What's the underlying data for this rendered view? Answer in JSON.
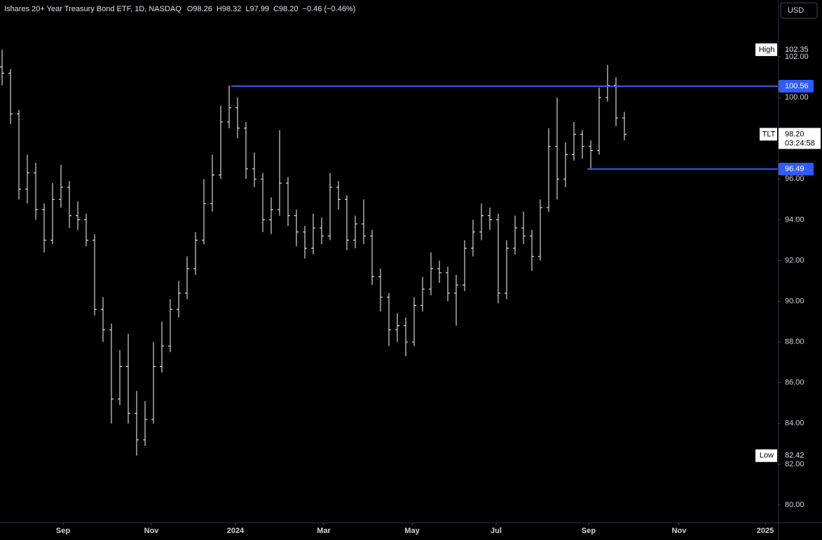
{
  "header": {
    "title": "Ishares 20+ Year Treasury Bond ETF, 1D, NASDAQ",
    "open": "O98.26",
    "high": "H98.32",
    "low": "L97.99",
    "close": "C98.20",
    "change": "−0.46 (−0.46%)"
  },
  "currency": "USD",
  "chart_data": {
    "type": "ohlc",
    "color": "#ffffff",
    "x": [
      1,
      5,
      9,
      13,
      17,
      21,
      25,
      29,
      33,
      37,
      41,
      45,
      49,
      53,
      57,
      61,
      65,
      69,
      73,
      77,
      81,
      85,
      89,
      93,
      97,
      101,
      105,
      109,
      113,
      117,
      121,
      125,
      129,
      133,
      137,
      141,
      145,
      149,
      153,
      157,
      161,
      165,
      169,
      173,
      177,
      181,
      185,
      189,
      193,
      197,
      201,
      205,
      209,
      213,
      217,
      221,
      225,
      229,
      233,
      237,
      241,
      245,
      249,
      253,
      257,
      261,
      265,
      269,
      273,
      277,
      281,
      285,
      289,
      293,
      297
    ],
    "open": [
      101.5,
      101.2,
      99.2,
      95.5,
      96.3,
      94.5,
      93.0,
      95.0,
      95.6,
      94.2,
      94.0,
      93.0,
      89.6,
      88.6,
      85.2,
      86.8,
      84.5,
      83.2,
      84.2,
      86.8,
      87.8,
      89.6,
      90.4,
      91.6,
      93.0,
      94.8,
      96.2,
      98.8,
      99.5,
      98.5,
      96.5,
      96.0,
      94.0,
      94.5,
      95.8,
      94.2,
      93.4,
      92.6,
      93.6,
      93.2,
      95.6,
      95.0,
      93.0,
      93.8,
      93.2,
      91.2,
      90.2,
      88.6,
      88.8,
      88.0,
      89.8,
      90.6,
      91.6,
      91.4,
      90.4,
      90.8,
      92.6,
      93.4,
      94.2,
      94.0,
      90.4,
      92.6,
      93.6,
      93.2,
      92.2,
      94.6,
      97.6,
      96.0,
      97.2,
      98.2,
      97.6,
      97.4,
      100.0,
      100.6,
      99.0
    ],
    "high": [
      102.35,
      101.4,
      99.4,
      97.2,
      96.8,
      94.8,
      95.8,
      96.7,
      95.9,
      94.9,
      94.3,
      93.3,
      90.2,
      88.9,
      87.6,
      88.4,
      85.6,
      85.1,
      88.0,
      89.0,
      90.1,
      91.0,
      92.2,
      93.4,
      96.0,
      97.2,
      99.6,
      100.6,
      100.0,
      98.8,
      97.3,
      96.3,
      95.1,
      98.4,
      96.1,
      94.5,
      93.7,
      94.3,
      94.1,
      96.3,
      95.9,
      95.2,
      94.2,
      95.0,
      93.5,
      91.6,
      90.4,
      89.4,
      89.2,
      90.2,
      91.2,
      92.4,
      92.0,
      91.7,
      91.3,
      93.0,
      94.0,
      94.8,
      94.6,
      94.3,
      93.0,
      94.2,
      94.4,
      93.5,
      95.0,
      98.5,
      100.0,
      97.8,
      98.8,
      98.4,
      97.9,
      100.5,
      101.6,
      101.0,
      99.3
    ],
    "low": [
      100.6,
      98.7,
      95.0,
      94.8,
      94.0,
      92.4,
      92.8,
      94.6,
      93.6,
      93.5,
      92.7,
      89.3,
      88.0,
      84.0,
      84.9,
      84.0,
      82.42,
      82.9,
      84.0,
      86.5,
      87.5,
      89.2,
      90.1,
      91.3,
      92.8,
      94.4,
      96.0,
      98.5,
      98.0,
      96.0,
      95.6,
      93.4,
      93.3,
      94.2,
      93.7,
      92.7,
      92.1,
      92.3,
      92.8,
      93.0,
      94.5,
      92.5,
      92.6,
      92.8,
      90.8,
      89.5,
      87.8,
      88.0,
      87.3,
      87.8,
      89.5,
      90.3,
      90.9,
      90.0,
      88.8,
      90.5,
      92.2,
      93.0,
      93.5,
      89.9,
      90.1,
      92.3,
      92.8,
      91.5,
      92.0,
      94.4,
      95.0,
      95.6,
      96.9,
      97.0,
      96.49,
      97.2,
      99.8,
      98.6,
      97.9
    ],
    "close": [
      101.2,
      99.2,
      95.5,
      96.3,
      94.5,
      93.0,
      95.0,
      95.6,
      94.2,
      94.0,
      93.0,
      89.6,
      88.6,
      85.2,
      86.8,
      84.5,
      83.2,
      84.2,
      86.8,
      87.8,
      89.6,
      90.4,
      91.6,
      93.0,
      94.8,
      96.2,
      98.8,
      99.5,
      98.5,
      96.5,
      96.0,
      94.0,
      94.5,
      95.8,
      94.2,
      93.4,
      92.6,
      93.6,
      93.2,
      95.6,
      95.0,
      93.0,
      93.8,
      93.2,
      91.2,
      90.2,
      88.6,
      88.8,
      88.0,
      89.8,
      90.6,
      91.6,
      91.4,
      90.4,
      90.8,
      92.6,
      93.4,
      94.2,
      94.0,
      90.4,
      92.6,
      93.6,
      93.2,
      92.2,
      94.6,
      97.6,
      96.0,
      97.2,
      98.2,
      97.6,
      97.4,
      100.0,
      100.6,
      99.0,
      98.2
    ],
    "xlim": [
      0,
      370
    ],
    "ylim": [
      79.14,
      104.79
    ],
    "xticks": [
      {
        "value": 30,
        "label": "Sep"
      },
      {
        "value": 72,
        "label": "Nov"
      },
      {
        "value": 112,
        "label": "2024"
      },
      {
        "value": 154,
        "label": "Mar"
      },
      {
        "value": 196,
        "label": "May"
      },
      {
        "value": 236,
        "label": "Jul"
      },
      {
        "value": 280,
        "label": "Sep"
      },
      {
        "value": 323,
        "label": "Nov"
      },
      {
        "value": 364,
        "label": "2025"
      }
    ],
    "yticks": [
      {
        "value": 80,
        "label": "80.00"
      },
      {
        "value": 82,
        "label": "82.00"
      },
      {
        "value": 84,
        "label": "84.00"
      },
      {
        "value": 86,
        "label": "86.00"
      },
      {
        "value": 88,
        "label": "88.00"
      },
      {
        "value": 90,
        "label": "90.00"
      },
      {
        "value": 92,
        "label": "92.00"
      },
      {
        "value": 94,
        "label": "94.00"
      },
      {
        "value": 96,
        "label": "96.00"
      },
      {
        "value": 98,
        "label": "98.00"
      },
      {
        "value": 100,
        "label": "100.00"
      },
      {
        "value": 102,
        "label": "102.00"
      }
    ],
    "levels": [
      {
        "value": 100.56,
        "x": 110,
        "color": "#2f5bff"
      },
      {
        "value": 96.49,
        "x": 279.3,
        "color": "#2f5bff"
      }
    ],
    "high_marker": {
      "label": "High",
      "value": 102.35
    },
    "low_marker": {
      "label": "Low",
      "value": 82.42
    },
    "last_price": {
      "label": "TLT",
      "value": {
        "value": 98.2,
        "label": "98.20"
      },
      "countdown": "03:24:58"
    }
  }
}
